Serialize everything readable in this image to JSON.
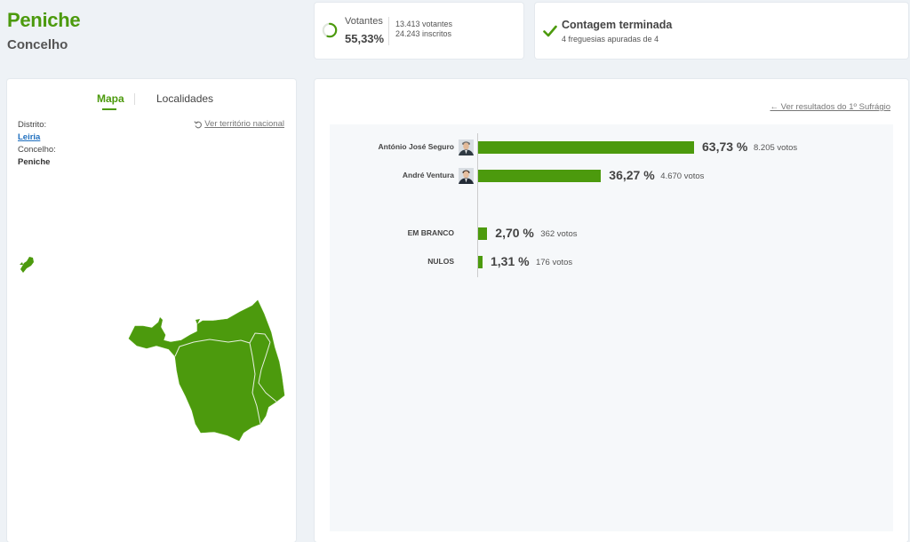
{
  "header": {
    "title": "Peniche",
    "subtitle": "Concelho"
  },
  "votantes": {
    "label": "Votantes",
    "percent": "55,33%",
    "turnout_fraction": 0.5533,
    "voters": "13.413 votantes",
    "registered": "24.243 inscritos"
  },
  "contagem": {
    "title": "Contagem terminada",
    "subtitle": "4 freguesias apuradas de 4"
  },
  "map_panel": {
    "tabs": {
      "map": "Mapa",
      "localities": "Localidades"
    },
    "distrito_label": "Distrito:",
    "distrito_value": "Leiria",
    "concelho_label": "Concelho:",
    "concelho_value": "Peniche",
    "national_link": "Ver território nacional"
  },
  "results": {
    "previous_link": "← Ver resultados do 1º Sufrágio",
    "candidates": [
      {
        "name": "António José Seguro",
        "percent": "63,73 %",
        "share": 63.73,
        "votes": "8.205 votos"
      },
      {
        "name": "André Ventura",
        "percent": "36,27 %",
        "share": 36.27,
        "votes": "4.670 votos"
      }
    ],
    "others": [
      {
        "name": "EM BRANCO",
        "percent": "2,70 %",
        "share": 2.7,
        "votes": "362 votos"
      },
      {
        "name": "NULOS",
        "percent": "1,31 %",
        "share": 1.31,
        "votes": "176 votos"
      }
    ]
  },
  "colors": {
    "accent": "#4c9a0d",
    "link": "#1f6fbf"
  },
  "icons": [
    "progress-ring-icon",
    "checkmark-icon",
    "undo-icon",
    "arrow-left-icon",
    "candidate-avatar-icon"
  ]
}
